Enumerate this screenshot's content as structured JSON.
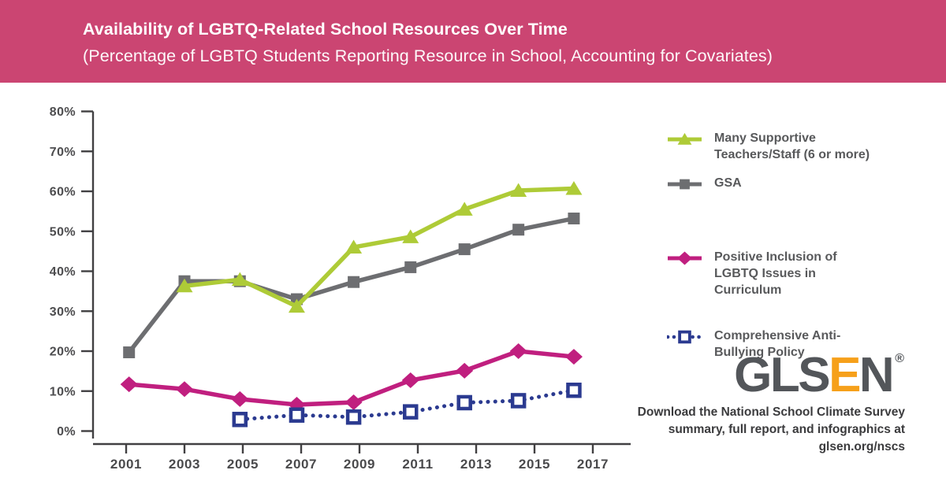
{
  "header": {
    "title": "Availability of LGBTQ-Related School Resources Over Time",
    "subtitle": "(Percentage of LGBTQ Students Reporting Resource in School, Accounting for Covariates)",
    "bg_color": "#CB4572"
  },
  "chart_data": {
    "type": "line",
    "title": "Availability of LGBTQ-Related School Resources Over Time",
    "subtitle": "(Percentage of LGBTQ Students Reporting Resource in School, Accounting for Covariates)",
    "x": [
      2001,
      2003,
      2005,
      2007,
      2009,
      2011,
      2013,
      2015,
      2017
    ],
    "xlabel": "",
    "ylabel": "",
    "ylim": [
      0,
      80
    ],
    "y_ticks": [
      0,
      10,
      20,
      30,
      40,
      50,
      60,
      70,
      80
    ],
    "y_tick_suffix": "%",
    "grid": false,
    "legend_position": "right",
    "plot_year_positions": [
      2001.1,
      2003.0,
      2004.9,
      2006.85,
      2008.8,
      2010.75,
      2012.6,
      2014.45,
      2016.35
    ],
    "series": [
      {
        "name": "GSA",
        "color": "#6D6E71",
        "marker": "square",
        "line": "solid",
        "values": [
          19.7,
          37.5,
          37.5,
          33.0,
          37.3,
          41.0,
          45.5,
          50.4,
          53.2
        ]
      },
      {
        "name": "Many Supportive Teachers/Staff (6 or more)",
        "color": "#AECB37",
        "marker": "triangle",
        "line": "solid",
        "values": [
          null,
          36.3,
          37.9,
          31.2,
          46.0,
          48.6,
          55.5,
          60.2,
          60.7
        ]
      },
      {
        "name": "Positive Inclusion of LGBTQ Issues in Curriculum",
        "color": "#C01F7F",
        "marker": "diamond",
        "line": "solid",
        "values": [
          11.7,
          10.5,
          8.0,
          6.6,
          7.2,
          12.7,
          15.1,
          20.0,
          18.6
        ]
      },
      {
        "name": "Comprehensive Anti-Bullying Policy",
        "color": "#2B3A90",
        "marker": "open-square",
        "line": "dotted",
        "values": [
          null,
          null,
          2.9,
          4.0,
          3.5,
          4.8,
          7.1,
          7.6,
          10.2
        ]
      }
    ]
  },
  "legend_order": [
    1,
    0,
    2,
    3
  ],
  "footer": {
    "logo": {
      "part1": "GLS",
      "accent": "E",
      "part2": "N",
      "registered": "®",
      "color_primary": "#53565A",
      "color_accent": "#F6A01A"
    },
    "download_lines": [
      "Download the National School Climate Survey",
      "summary, full report, and infographics at",
      "glsen.org/nscs"
    ]
  }
}
